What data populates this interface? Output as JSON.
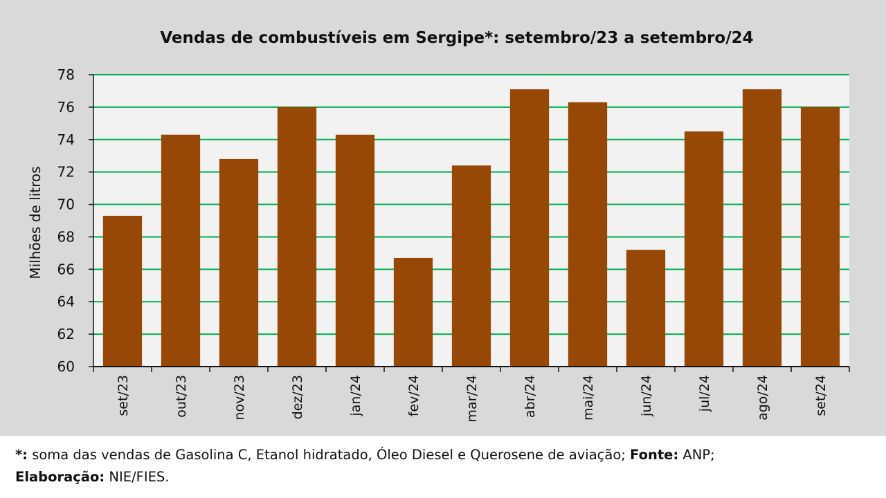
{
  "chart_data": {
    "type": "bar",
    "title": "Vendas de combustíveis em Sergipe*: setembro/23 a setembro/24",
    "ylabel": "Milhões de litros",
    "xlabel": "",
    "categories": [
      "set/23",
      "out/23",
      "nov/23",
      "dez/23",
      "jan/24",
      "fev/24",
      "mar/24",
      "abr/24",
      "mai/24",
      "jun/24",
      "jul/24",
      "ago/24",
      "set/24"
    ],
    "values": [
      69.3,
      74.3,
      72.8,
      76.0,
      74.3,
      66.7,
      72.4,
      77.1,
      76.3,
      67.2,
      74.5,
      77.1,
      76.0
    ],
    "ylim": [
      60,
      78
    ],
    "yticks": [
      60,
      62,
      64,
      66,
      68,
      70,
      72,
      74,
      76,
      78
    ],
    "grid": true,
    "bar_color": "#974706",
    "grid_color": "#00b050",
    "plot_bg": "#f2f2f2"
  },
  "footnote": {
    "star": "*:",
    "text1": " soma das vendas de Gasolina C, Etanol hidratado, Óleo Diesel e Querosene de aviação; ",
    "fonte_label": "Fonte:",
    "fonte_value": " ANP;",
    "elab_label": "Elaboração:",
    "elab_value": " NIE/FIES."
  }
}
